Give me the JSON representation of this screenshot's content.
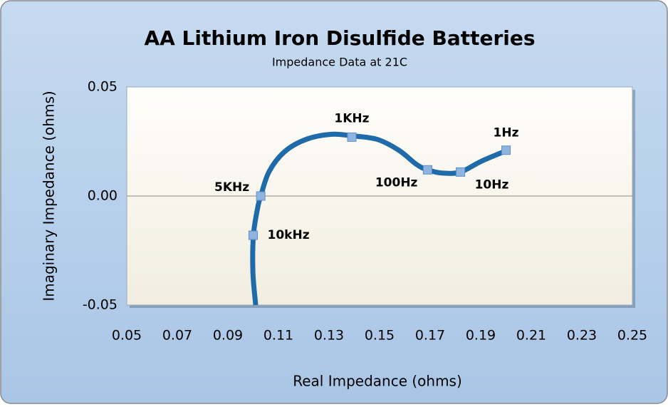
{
  "chart_data": {
    "type": "line",
    "title": "AA Lithium Iron Disulfide Batteries",
    "subtitle": "Impedance Data at 21C",
    "x_label": "Real Impedance (ohms)",
    "y_label": "Imaginary Impedance (ohms)",
    "xlim": [
      0.05,
      0.25
    ],
    "xticks": [
      0.05,
      0.07,
      0.09,
      0.11,
      0.13,
      0.15,
      0.17,
      0.19,
      0.21,
      0.23,
      0.25
    ],
    "ylim": [
      -0.05,
      0.05
    ],
    "yticks": [
      -0.05,
      {
        "value": 0,
        "label": "0.00"
      },
      0.05
    ],
    "grid": false,
    "line": {
      "color": "#1f6aa8",
      "x": [
        0.101,
        0.0999,
        0.1001,
        0.1018,
        0.103,
        0.1063,
        0.1125,
        0.121,
        0.131,
        0.139,
        0.149,
        0.1576,
        0.1646,
        0.169,
        0.175,
        0.182,
        0.19,
        0.2
      ],
      "values": [
        -0.05,
        -0.035,
        -0.018,
        -0.0053,
        0,
        0.0112,
        0.0204,
        0.026,
        0.0283,
        0.0276,
        0.026,
        0.021,
        0.0145,
        0.012,
        0.0105,
        0.011,
        0.0158,
        0.0207
      ]
    },
    "points": {
      "color": "#8fb4e0",
      "x": [
        0.1,
        0.103,
        0.139,
        0.169,
        0.182,
        0.2
      ],
      "values": [
        -0.018,
        0,
        0.027,
        0.012,
        0.011,
        0.021
      ],
      "labels": [
        "10kHz",
        "5KHz",
        "1KHz",
        "100Hz",
        "10Hz",
        "1Hz"
      ]
    }
  }
}
